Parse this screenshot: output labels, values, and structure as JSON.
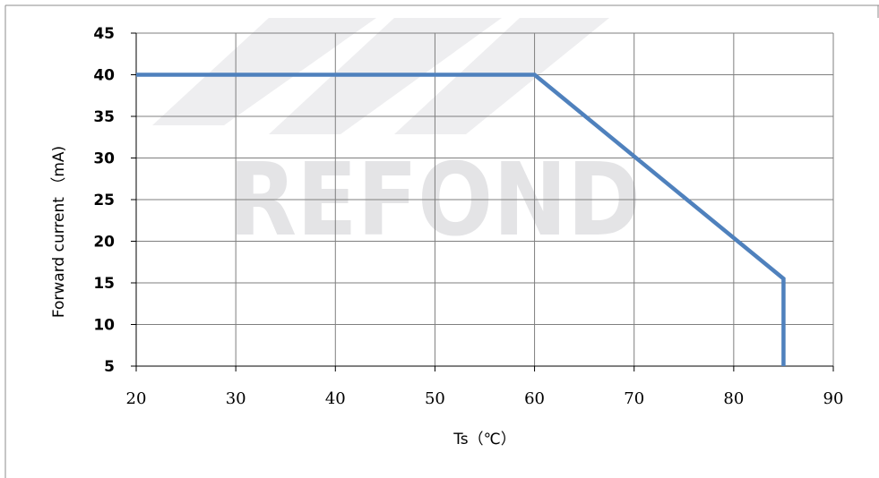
{
  "watermark": {
    "text": "REFOND"
  },
  "chart_data": {
    "type": "line",
    "xlabel": "Ts（℃）",
    "ylabel": "Forward current （mA)",
    "xlim": [
      20,
      90
    ],
    "ylim": [
      5,
      45
    ],
    "x_ticks": [
      "20",
      "30",
      "40",
      "50",
      "60",
      "70",
      "80",
      "90"
    ],
    "y_ticks": [
      "45",
      "40",
      "35",
      "30",
      "25",
      "20",
      "15",
      "10",
      "5"
    ],
    "grid": true,
    "colors": {
      "line": "#4f81bd",
      "grid": "#7f7f7f",
      "axis": "#000000",
      "frame": "#7f7f7f"
    },
    "series": [
      {
        "x": [
          20,
          60,
          85,
          85
        ],
        "y": [
          40,
          40,
          15.5,
          5
        ]
      }
    ]
  }
}
